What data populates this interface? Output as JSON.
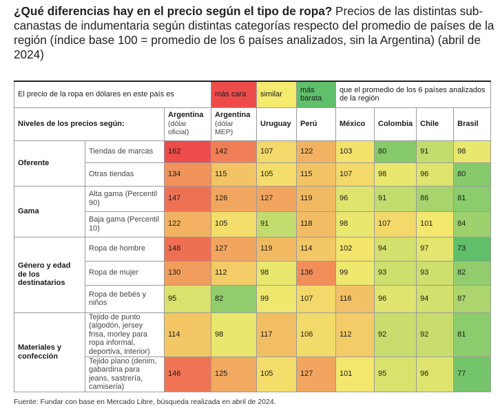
{
  "title": {
    "bold": "¿Qué diferencias hay en el precio según el tipo de ropa?",
    "rest": " Precios de las distintas sub-canastas de indumentaria según distintas categorías respecto del promedio de países de la región (índice base 100  = promedio de los 6 países analizados, sin la Argentina) (abril de 2024)"
  },
  "legend": {
    "intro": "El precio de la ropa en dólares en este país es",
    "items": [
      {
        "label": "más cara",
        "color": "#ee4b4b"
      },
      {
        "label": "similar",
        "color": "#f4ea6e"
      },
      {
        "label": "más barata",
        "color": "#5fbf6b"
      }
    ],
    "outro": "que el promedio de los 6 países analizados de la región"
  },
  "header": {
    "levels_label": "Niveles de los precios según:",
    "countries": [
      {
        "name": "Argentina",
        "sub": "(dólar oficial)"
      },
      {
        "name": "Argentina",
        "sub": "(dólar MEP)"
      },
      {
        "name": "Uruguay",
        "sub": ""
      },
      {
        "name": "Perú",
        "sub": ""
      },
      {
        "name": "México",
        "sub": ""
      },
      {
        "name": "Colombia",
        "sub": ""
      },
      {
        "name": "Chile",
        "sub": ""
      },
      {
        "name": "Brasil",
        "sub": ""
      }
    ]
  },
  "chart_data": {
    "type": "heatmap",
    "columns": [
      "Argentina (dólar oficial)",
      "Argentina (dólar MEP)",
      "Uruguay",
      "Perú",
      "México",
      "Colombia",
      "Chile",
      "Brasil"
    ],
    "groups": [
      {
        "name": "Oferente",
        "rows": [
          {
            "label": "Tiendas de marcas",
            "values": [
              162,
              142,
              107,
              122,
              103,
              80,
              91,
              98
            ]
          },
          {
            "label": "Otras tiendas",
            "values": [
              134,
              115,
              105,
              115,
              107,
              98,
              96,
              80
            ]
          }
        ]
      },
      {
        "name": "Gama",
        "rows": [
          {
            "label": "Alta gama (Percentil 90)",
            "values": [
              147,
              126,
              127,
              119,
              96,
              91,
              86,
              81
            ]
          },
          {
            "label": "Baja gama (Percentil 10)",
            "values": [
              122,
              105,
              91,
              118,
              98,
              107,
              101,
              84
            ]
          }
        ]
      },
      {
        "name": "Género y edad de los destinatarios",
        "rows": [
          {
            "label": "Ropa de hombre",
            "values": [
              148,
              127,
              119,
              114,
              102,
              94,
              97,
              73
            ]
          },
          {
            "label": "Ropa de mujer",
            "values": [
              130,
              112,
              98,
              136,
              99,
              93,
              93,
              82
            ]
          },
          {
            "label": "Ropa de bebés y niños",
            "values": [
              95,
              82,
              99,
              107,
              116,
              96,
              94,
              87
            ]
          }
        ]
      },
      {
        "name": "Materiales y confección",
        "rows": [
          {
            "label": "Tejido de punto (algodón, jersey frisa, morley para ropa informal, deportiva, interior)",
            "values": [
              114,
              98,
              117,
              106,
              112,
              92,
              92,
              81
            ]
          },
          {
            "label": "Tejido plano (denim, gabardina para jeans, sastrería, camisería)",
            "values": [
              146,
              125,
              105,
              127,
              101,
              95,
              96,
              77
            ]
          }
        ]
      }
    ],
    "color_scale": {
      "low": "#5fbf6b",
      "mid": "#f4ea6e",
      "high": "#ee4b4b",
      "min": 73,
      "mid_value": 100,
      "max": 162
    }
  },
  "source": "Fuente: Fundar con base en Mercado Libre, búsqueda realizada en abril de 2024."
}
